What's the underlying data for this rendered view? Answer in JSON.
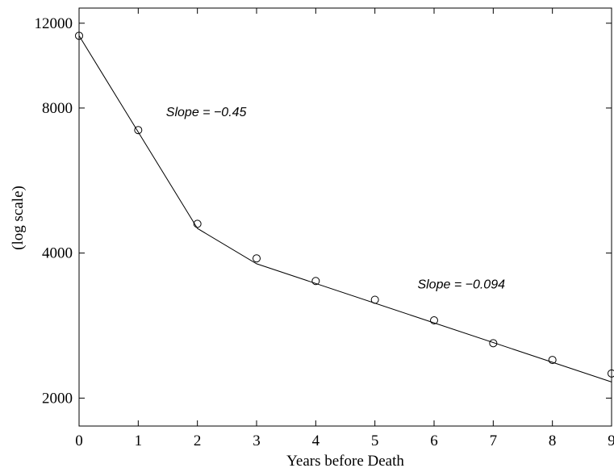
{
  "chart_data": {
    "type": "line",
    "title": "",
    "xlabel": "Years before Death",
    "ylabel": "(log scale)",
    "yscale": "log",
    "xlim": [
      0,
      9
    ],
    "ylim": [
      1750,
      12900
    ],
    "xticks": [
      0,
      1,
      2,
      3,
      4,
      5,
      6,
      7,
      8,
      9
    ],
    "yticks": [
      2000,
      4000,
      8000,
      12000
    ],
    "grid": false,
    "legend": "none",
    "series": [
      {
        "name": "",
        "marker": "circle",
        "points": [
          {
            "x": 0,
            "y": 11300
          },
          {
            "x": 1,
            "y": 7200
          },
          {
            "x": 2,
            "y": 4600
          },
          {
            "x": 3,
            "y": 3900
          },
          {
            "x": 4,
            "y": 3500
          },
          {
            "x": 5,
            "y": 3200
          },
          {
            "x": 6,
            "y": 2900
          },
          {
            "x": 7,
            "y": 2600
          },
          {
            "x": 8,
            "y": 2400
          },
          {
            "x": 9,
            "y": 2250
          }
        ]
      },
      {
        "name": "",
        "marker": "none",
        "points": [
          {
            "x": 0,
            "y": 11300
          },
          {
            "x": 2,
            "y": 4500
          },
          {
            "x": 3,
            "y": 3800
          },
          {
            "x": 9,
            "y": 2160
          }
        ]
      }
    ],
    "annotations": [
      {
        "text": "Slope = −0.45",
        "x": 1.47,
        "y": 7700
      },
      {
        "text": "Slope = −0.094",
        "x": 5.72,
        "y": 3380
      }
    ],
    "colors": {
      "line": "#000000",
      "background": "#ffffff"
    }
  }
}
